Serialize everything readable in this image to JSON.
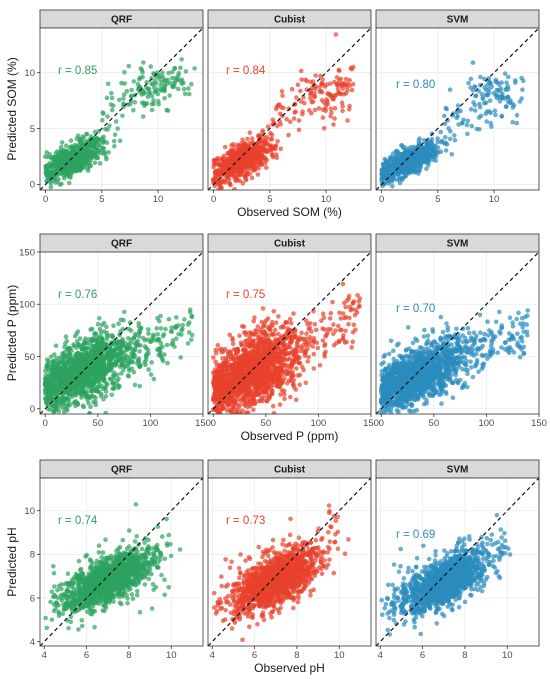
{
  "models": [
    "QRF",
    "Cubist",
    "SVM"
  ],
  "colors": {
    "QRF": "#2ca25f",
    "Cubist": "#e8412c",
    "SVM": "#2b8cbe"
  },
  "chart_data": [
    {
      "type": "scatter",
      "variable": "SOM",
      "xlabel": "Observed SOM (%)",
      "ylabel": "Predicted SOM (%)",
      "xlim": [
        -0.5,
        14
      ],
      "ylim": [
        -0.5,
        14
      ],
      "ticks": [
        0,
        5,
        10
      ],
      "reference_line": "1:1 dashed",
      "panels": [
        {
          "model": "QRF",
          "r_label": "r = 0.85",
          "cloud": {
            "x_center": 2.5,
            "y_center": 2.3,
            "x_spread": 1.3,
            "y_spread": 0.7,
            "count": 600
          },
          "tail": {
            "x_range": [
              5,
              12.5
            ],
            "y_range": [
              5,
              10.5
            ],
            "count": 90
          },
          "extreme": {
            "x_center": 10,
            "y_center": 8.8,
            "count": 50
          }
        },
        {
          "model": "Cubist",
          "r_label": "r = 0.84",
          "cloud": {
            "x_center": 2.5,
            "y_center": 2.2,
            "x_spread": 1.3,
            "y_spread": 0.8,
            "count": 650
          },
          "tail": {
            "x_range": [
              5,
              12.5
            ],
            "y_range": [
              3,
              10.5
            ],
            "count": 90
          },
          "extreme": {
            "x_center": 10,
            "y_center": 8.5,
            "count": 50
          }
        },
        {
          "model": "SVM",
          "r_label": "r = 0.80",
          "cloud": {
            "x_center": 2.5,
            "y_center": 2.1,
            "x_spread": 1.3,
            "y_spread": 0.6,
            "count": 650
          },
          "tail": {
            "x_range": [
              5,
              12.5
            ],
            "y_range": [
              3,
              9.5
            ],
            "count": 80
          },
          "extreme": {
            "x_center": 10,
            "y_center": 8.3,
            "count": 50
          }
        }
      ]
    },
    {
      "type": "scatter",
      "variable": "P",
      "xlabel": "Observed P (ppm)",
      "ylabel": "Predicted P (ppm)",
      "xlim": [
        -5,
        150
      ],
      "ylim": [
        -5,
        150
      ],
      "ticks": [
        0,
        50,
        100,
        150
      ],
      "reference_line": "1:1 dashed",
      "panels": [
        {
          "model": "QRF",
          "r_label": "r = 0.76",
          "cloud": {
            "x_center": 35,
            "y_center": 35,
            "x_spread": 22,
            "y_spread": 14,
            "count": 1400
          },
          "tail": {
            "x_range": [
              70,
              140
            ],
            "y_range": [
              20,
              90
            ],
            "count": 120
          }
        },
        {
          "model": "Cubist",
          "r_label": "r = 0.75",
          "cloud": {
            "x_center": 35,
            "y_center": 35,
            "x_spread": 22,
            "y_spread": 17,
            "count": 1500
          },
          "tail": {
            "x_range": [
              70,
              140
            ],
            "y_range": [
              20,
              105
            ],
            "count": 120
          }
        },
        {
          "model": "SVM",
          "r_label": "r = 0.70",
          "cloud": {
            "x_center": 35,
            "y_center": 33,
            "x_spread": 22,
            "y_spread": 13,
            "count": 1400
          },
          "tail": {
            "x_range": [
              70,
              140
            ],
            "y_range": [
              20,
              90
            ],
            "count": 120
          }
        }
      ]
    },
    {
      "type": "scatter",
      "variable": "pH",
      "xlabel": "Observed pH",
      "ylabel": "Predicted pH",
      "xlim": [
        3.8,
        11.5
      ],
      "ylim": [
        3.8,
        11.5
      ],
      "ticks": [
        4,
        6,
        8,
        10
      ],
      "reference_line": "1:1 dashed",
      "panels": [
        {
          "model": "QRF",
          "r_label": "r = 0.74",
          "cloud": {
            "x_center": 7,
            "y_center": 6.8,
            "x_spread": 1.0,
            "y_spread": 0.5,
            "count": 1300
          },
          "tail": {
            "x_range": [
              4.3,
              10
            ],
            "y_range": [
              4.3,
              9.2
            ],
            "count": 90
          }
        },
        {
          "model": "Cubist",
          "r_label": "r = 0.73",
          "cloud": {
            "x_center": 7,
            "y_center": 6.8,
            "x_spread": 1.0,
            "y_spread": 0.55,
            "count": 1300
          },
          "tail": {
            "x_range": [
              4.3,
              10
            ],
            "y_range": [
              4.2,
              9.5
            ],
            "count": 90
          }
        },
        {
          "model": "SVM",
          "r_label": "r = 0.69",
          "cloud": {
            "x_center": 7,
            "y_center": 6.7,
            "x_spread": 1.0,
            "y_spread": 0.5,
            "count": 1300
          },
          "tail": {
            "x_range": [
              4.3,
              10
            ],
            "y_range": [
              4.3,
              9.4
            ],
            "count": 90
          }
        }
      ]
    }
  ]
}
